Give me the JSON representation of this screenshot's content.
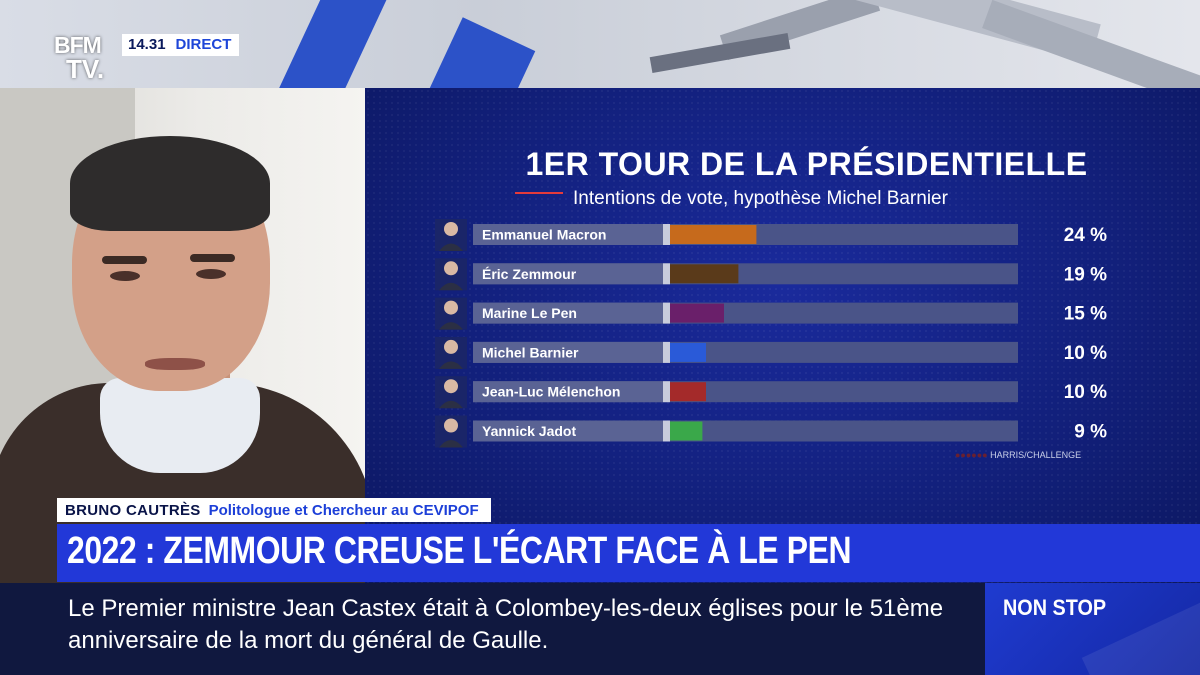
{
  "channel": {
    "logo_top": "BFM",
    "logo_bottom": "TV.",
    "time": "14.31",
    "live_label": "DIRECT"
  },
  "chart_data": {
    "type": "bar",
    "title": "1ER TOUR DE LA PRÉSIDENTIELLE",
    "subtitle": "Intentions de vote, hypothèse Michel Barnier",
    "categories": [
      "Emmanuel Macron",
      "Éric Zemmour",
      "Marine Le Pen",
      "Michel Barnier",
      "Jean-Luc Mélenchon",
      "Yannick Jadot"
    ],
    "values": [
      24,
      19,
      15,
      10,
      10,
      9
    ],
    "value_labels": [
      "24 %",
      "19 %",
      "15 %",
      "10 %",
      "10 %",
      "9 %"
    ],
    "colors": [
      "#c66a1c",
      "#5a3a1a",
      "#6a1f6a",
      "#2a5ad8",
      "#a42a2a",
      "#3aa84a"
    ],
    "xlim": [
      0,
      100
    ],
    "source": "HARRIS/CHALLENGE"
  },
  "guest": {
    "name": "BRUNO CAUTRÈS",
    "role": "Politologue et Chercheur au CEVIPOF"
  },
  "headline": "2022 : ZEMMOUR CREUSE L'ÉCART FACE À LE PEN",
  "ticker": {
    "text": "Le Premier ministre Jean Castex était à Colombey-les-deux églises pour le 51ème anniversaire de la mort du général de Gaulle."
  },
  "program": {
    "label": "NON STOP"
  }
}
